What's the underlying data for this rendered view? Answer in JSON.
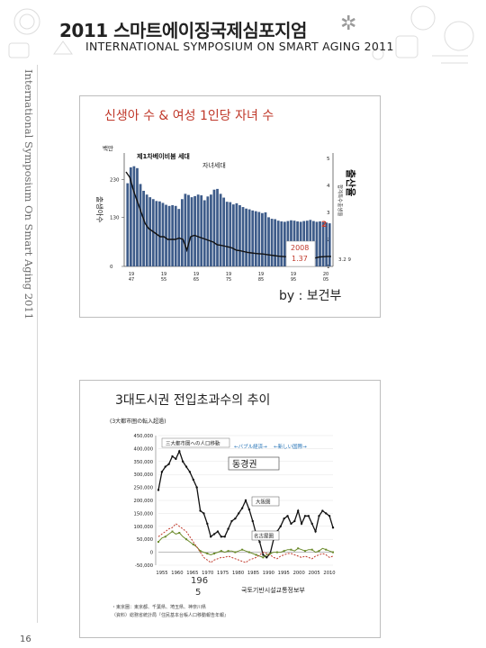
{
  "header": {
    "title": "2011 스마트에이징국제심포지엄",
    "subtitle": "INTERNATIONAL SYMPOSIUM ON SMART AGING 2011"
  },
  "side_label": "International Symposium On Smart Aging 2011",
  "page_number": "16",
  "slide1": {
    "title": "신생아 수 & 여성 1인당 자녀 수",
    "source": "by : 보건부",
    "chart_data": {
      "type": "bar",
      "unit_label": "백만",
      "left_axis_ticks": [
        "230",
        "130",
        "0"
      ],
      "right_axis_ticks": [
        "5",
        "4",
        "3",
        "2",
        "1"
      ],
      "left_axis_label": "출생아수",
      "right_axis_label": "출산율",
      "right_axis_inner_label": "합계특수출생율",
      "annotations": {
        "baby_boom": "제1차베이비붐 세대",
        "children": "자녀세대",
        "callout_year": "2008",
        "callout_value": "1.37",
        "rate_marker": "2",
        "side_values": "3.2 9"
      },
      "x_tick_labels": [
        "19 47",
        "19 55",
        "19 65",
        "19 75",
        "19 85",
        "19 95",
        "20 05"
      ],
      "series": [
        {
          "values": [
            220,
            262,
            265,
            260,
            218,
            200,
            190,
            183,
            178,
            173,
            172,
            168,
            163,
            160,
            162,
            160,
            152,
            178,
            192,
            189,
            183,
            186,
            190,
            188,
            175,
            185,
            190,
            203,
            205,
            192,
            182,
            171,
            170,
            164,
            167,
            162,
            157,
            153,
            151,
            148,
            146,
            144,
            141,
            143,
            130,
            126,
            125,
            121,
            119,
            118,
            120,
            122,
            121,
            119,
            118,
            120,
            121,
            123,
            120,
            118,
            119,
            117,
            116,
            114
          ]
        },
        {
          "values": [
            4.5,
            4.3,
            3.8,
            3.4,
            3.0,
            2.6,
            2.4,
            2.3,
            2.2,
            2.1,
            2.1,
            2.0,
            2.0,
            2.0,
            2.05,
            2.0,
            1.6,
            2.1,
            2.15,
            2.1,
            2.05,
            2.0,
            1.95,
            1.9,
            1.8,
            1.78,
            1.75,
            1.72,
            1.68,
            1.6,
            1.58,
            1.55,
            1.52,
            1.5,
            1.48,
            1.47,
            1.46,
            1.44,
            1.42,
            1.4,
            1.38,
            1.37,
            1.36,
            1.35,
            1.34,
            1.33,
            1.32,
            1.3,
            1.29,
            1.3,
            1.32,
            1.35,
            1.36,
            1.37,
            1.37
          ]
        }
      ]
    }
  },
  "slide2": {
    "title": "3대도시권 전입초과수의 추이",
    "chart_data": {
      "type": "line",
      "title": "(3大都市圏の転入超過)",
      "y_ticks": [
        "450,000",
        "400,000",
        "350,000",
        "300,000",
        "250,000",
        "200,000",
        "150,000",
        "100,000",
        "50,000",
        "0",
        "-50,000"
      ],
      "y_min": -50000,
      "y_max": 450000,
      "x_tick_labels": [
        "1955",
        "1960",
        "1965",
        "1970",
        "1975",
        "1980",
        "1985",
        "1990",
        "1995",
        "2000",
        "2005",
        "2010"
      ],
      "legend_text": "三大都市圏への人口移動",
      "period_labels": [
        "←バブル経済→",
        "←新しい国際→"
      ],
      "overlay_labels": {
        "tokyo_area": "동경권",
        "osaka_area": "大阪圏",
        "nagoya_area": "名古屋圏",
        "year_label": "196 5",
        "footer": "국토기반시설교통정보부",
        "note_1": "・東京圏：東京都、千葉県、埼玉県、神奈川県",
        "note_2": "（資料）総務省統計局『住民基本台帳人口移動報告年報』"
      },
      "series": [
        {
          "name": "東京圏",
          "values": [
            240000,
            310000,
            330000,
            340000,
            370000,
            360000,
            390000,
            350000,
            330000,
            310000,
            280000,
            250000,
            160000,
            150000,
            110000,
            60000,
            70000,
            80000,
            60000,
            60000,
            90000,
            120000,
            130000,
            150000,
            170000,
            200000,
            165000,
            120000,
            70000,
            40000,
            -10000,
            -20000,
            -5000,
            50000,
            80000,
            100000,
            130000,
            140000,
            110000,
            120000,
            160000,
            110000,
            140000,
            140000,
            110000,
            80000,
            140000,
            160000,
            150000,
            140000,
            95000
          ]
        },
        {
          "name": "名古屋圏",
          "values": [
            40000,
            55000,
            60000,
            70000,
            80000,
            70000,
            75000,
            60000,
            50000,
            40000,
            30000,
            20000,
            5000,
            0,
            -5000,
            -10000,
            -5000,
            0,
            5000,
            0,
            5000,
            5000,
            0,
            5000,
            10000,
            5000,
            0,
            -5000,
            -10000,
            -15000,
            -20000,
            -10000,
            -5000,
            0,
            0,
            0,
            5000,
            10000,
            10000,
            5000,
            15000,
            10000,
            5000,
            10000,
            10000,
            0,
            5000,
            15000,
            10000,
            5000,
            0
          ]
        },
        {
          "name": "大阪圏",
          "values": [
            60000,
            70000,
            80000,
            90000,
            95000,
            110000,
            100000,
            90000,
            80000,
            60000,
            40000,
            20000,
            0,
            -20000,
            -30000,
            -40000,
            -30000,
            -25000,
            -20000,
            -20000,
            -15000,
            -20000,
            -25000,
            -30000,
            -35000,
            -40000,
            -30000,
            -25000,
            -20000,
            -10000,
            0,
            -5000,
            -10000,
            -20000,
            -25000,
            -15000,
            -10000,
            -5000,
            -5000,
            -10000,
            -15000,
            -20000,
            -15000,
            -20000,
            -25000,
            -15000,
            -10000,
            -5000,
            -10000,
            -20000,
            -15000
          ]
        }
      ]
    }
  }
}
